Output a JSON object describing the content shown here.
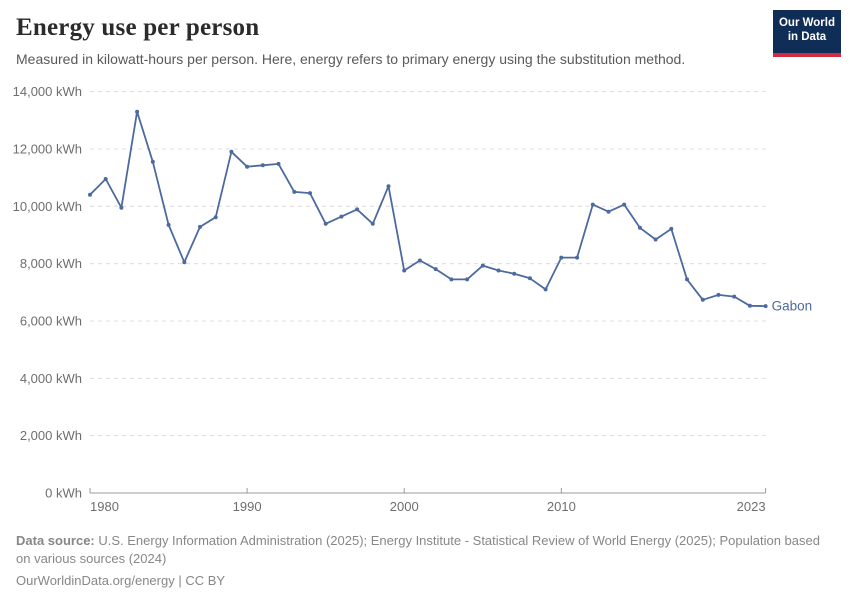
{
  "header": {
    "title": "Energy use per person",
    "subtitle": "Measured in kilowatt-hours per person. Here, energy refers to primary energy using the substitution method."
  },
  "logo": {
    "line1": "Our World",
    "line2": "in Data",
    "bg_color": "#0f2d56",
    "bar_color": "#d32b42",
    "text_color": "#ffffff"
  },
  "chart_data": {
    "type": "line",
    "title": "Energy use per person",
    "xlabel": "",
    "ylabel": "kWh",
    "entity": "Gabon",
    "series": [
      {
        "name": "Gabon",
        "color": "#4d6a9e",
        "x": [
          1980,
          1981,
          1982,
          1983,
          1984,
          1985,
          1986,
          1987,
          1988,
          1989,
          1990,
          1991,
          1992,
          1993,
          1994,
          1995,
          1996,
          1997,
          1998,
          1999,
          2000,
          2001,
          2002,
          2003,
          2004,
          2005,
          2006,
          2007,
          2008,
          2009,
          2010,
          2011,
          2012,
          2013,
          2014,
          2015,
          2016,
          2017,
          2018,
          2019,
          2020,
          2021,
          2022,
          2023
        ],
        "values": [
          10400,
          10950,
          9950,
          13300,
          11550,
          9350,
          8050,
          9280,
          9620,
          11900,
          11380,
          11430,
          11480,
          10500,
          10460,
          9390,
          9640,
          9890,
          9390,
          10700,
          7760,
          8110,
          7810,
          7450,
          7450,
          7930,
          7760,
          7650,
          7490,
          7100,
          8210,
          8210,
          10060,
          9810,
          10060,
          9250,
          8840,
          9210,
          7450,
          6740,
          6910,
          6850,
          6530,
          6520
        ]
      }
    ],
    "xlim": [
      1980,
      2023
    ],
    "ylim": [
      0,
      14000
    ],
    "xticks": [
      1980,
      1990,
      2000,
      2010,
      2023
    ],
    "xtick_labels": [
      "1980",
      "1990",
      "2000",
      "2010",
      "2023"
    ],
    "yticks": [
      0,
      2000,
      4000,
      6000,
      8000,
      10000,
      12000,
      14000
    ],
    "ytick_labels": [
      "0 kWh",
      "2,000 kWh",
      "4,000 kWh",
      "6,000 kWh",
      "8,000 kWh",
      "10,000 kWh",
      "12,000 kWh",
      "14,000 kWh"
    ],
    "grid": true,
    "legend_position": "end-of-line-label",
    "grid_color": "#dcdcdc",
    "axis_color": "#9b9b9b",
    "tick_label_color": "#6e6e71"
  },
  "footer": {
    "source_label": "Data source:",
    "source_text": " U.S. Energy Information Administration (2025); Energy Institute - Statistical Review of World Energy (2025); Population based on various sources (2024)",
    "link": "OurWorldinData.org/energy",
    "separator": " | ",
    "license": "CC BY"
  }
}
